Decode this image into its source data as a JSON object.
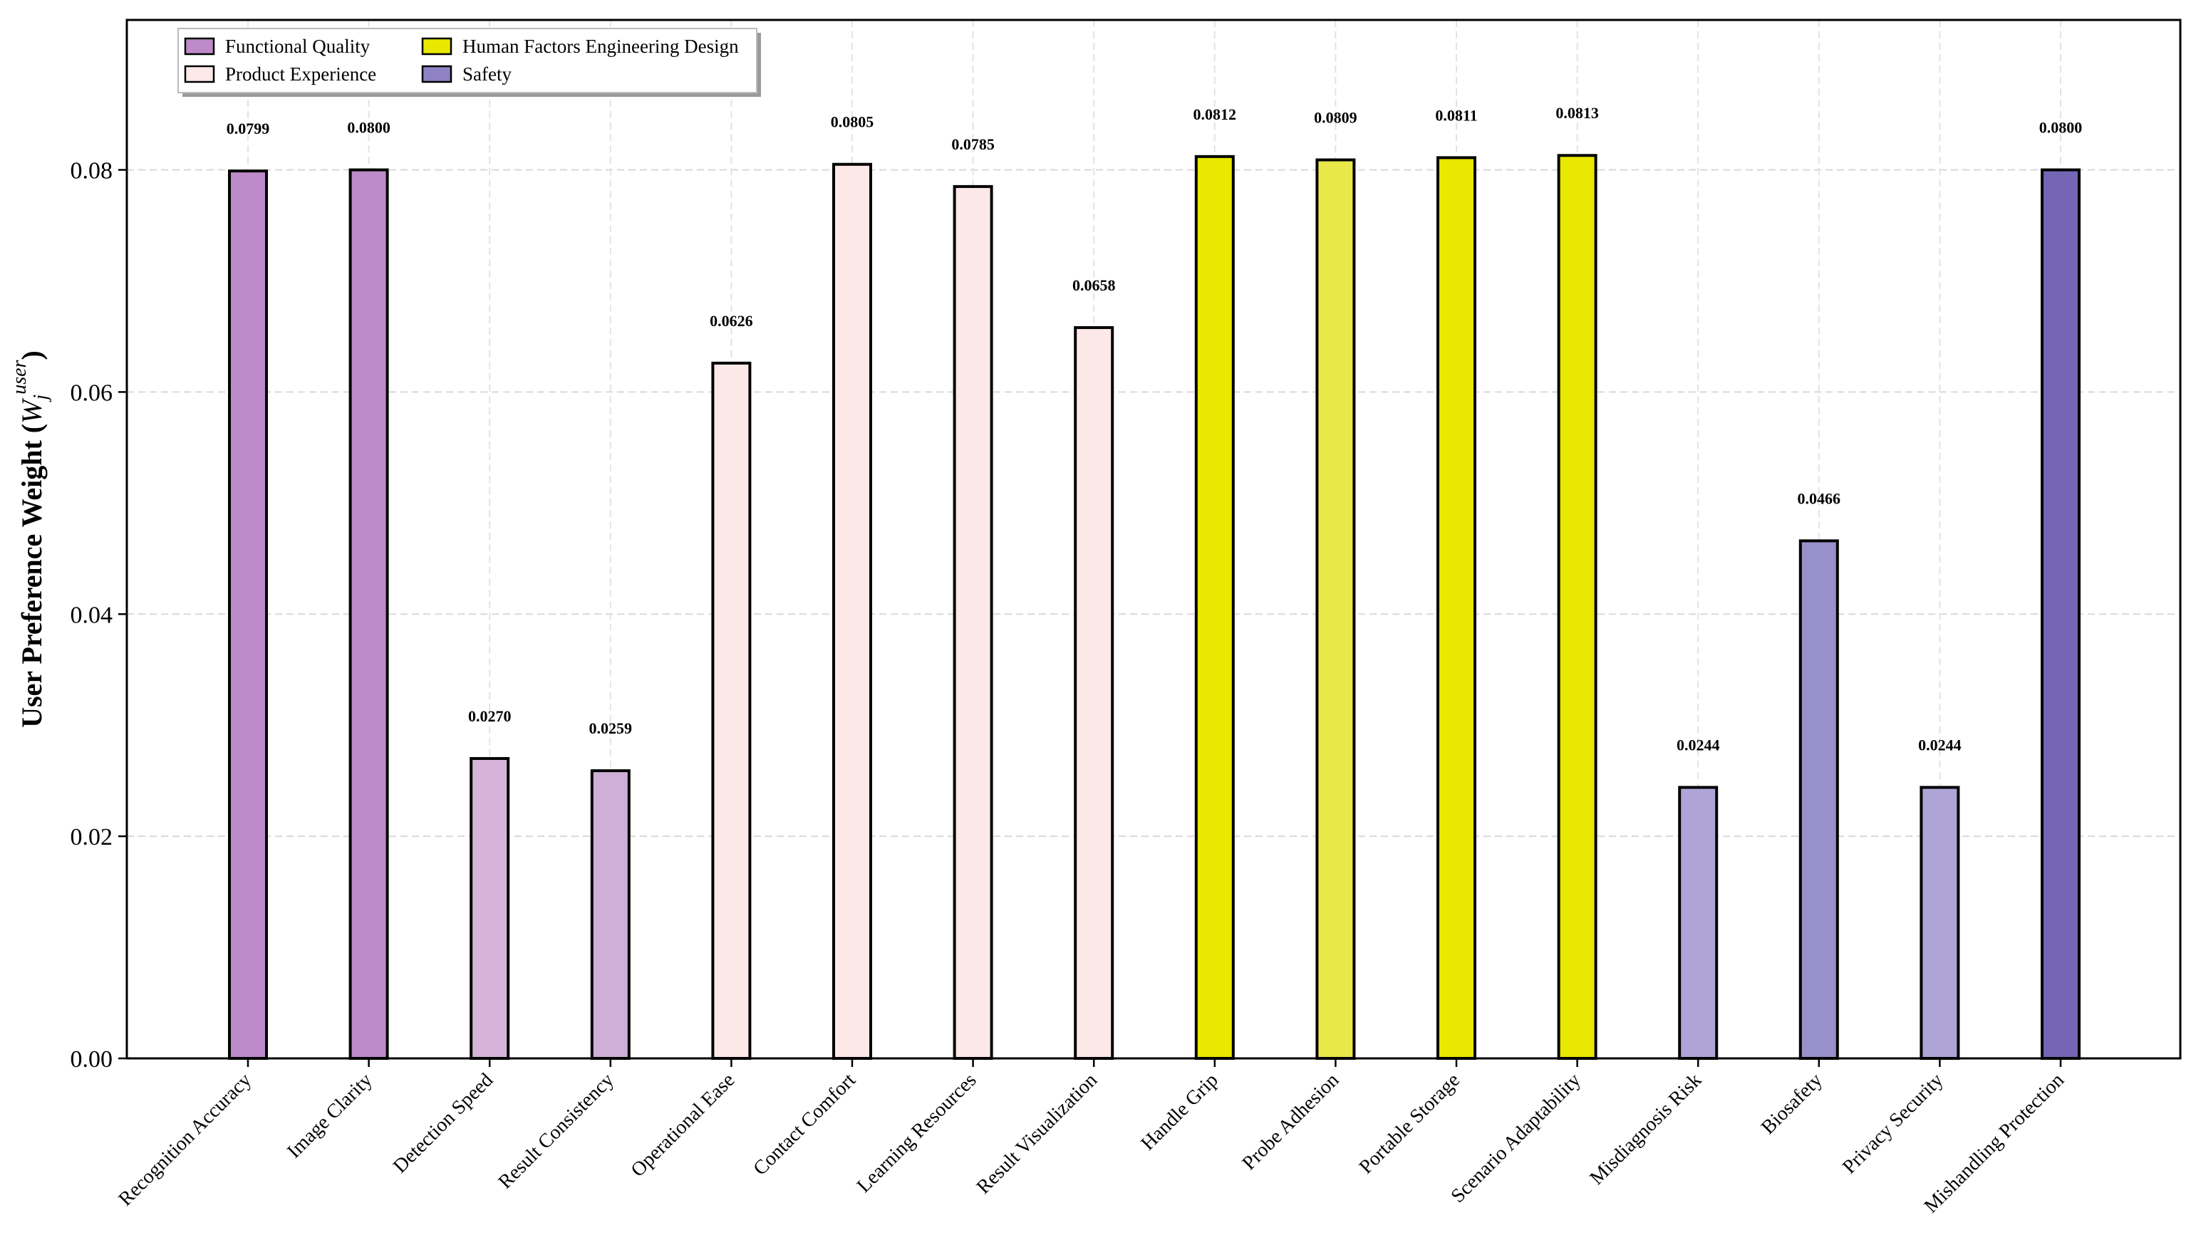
{
  "chart_data": {
    "type": "bar",
    "title": "",
    "xlabel": "",
    "ylabel": {
      "main": "User Preference Weight (",
      "var": "W",
      "sub": "j",
      "sup": "user",
      "close": ")"
    },
    "ylim": [
      0,
      0.0935
    ],
    "yticks": [
      {
        "value": 0.0,
        "label": "0.00"
      },
      {
        "value": 0.02,
        "label": "0.02"
      },
      {
        "value": 0.04,
        "label": "0.04"
      },
      {
        "value": 0.06,
        "label": "0.06"
      },
      {
        "value": 0.08,
        "label": "0.08"
      }
    ],
    "grid": true,
    "legend_position": "top-left",
    "legend": [
      {
        "name": "Functional Quality",
        "color": "#BD8BC9"
      },
      {
        "name": "Product Experience",
        "color": "#FDE8E8"
      },
      {
        "name": "Human Factors Engineering Design",
        "color": "#E8E800"
      },
      {
        "name": "Safety",
        "color": "#8E82C4"
      }
    ],
    "categories": [
      "Recognition Accuracy",
      "Image Clarity",
      "Detection Speed",
      "Result Consistency",
      "Operational Ease",
      "Contact Comfort",
      "Learning Resources",
      "Result Visualization",
      "Handle Grip",
      "Probe Adhesion",
      "Portable Storage",
      "Scenario Adaptability",
      "Misdiagnosis Risk",
      "Biosafety",
      "Privacy Security",
      "Mishandling Protection"
    ],
    "values": [
      0.0799,
      0.08,
      0.027,
      0.0259,
      0.0626,
      0.0805,
      0.0785,
      0.0658,
      0.0812,
      0.0809,
      0.0811,
      0.0813,
      0.0244,
      0.0466,
      0.0244,
      0.08
    ],
    "value_labels": [
      "0.0799",
      "0.0800",
      "0.0270",
      "0.0259",
      "0.0626",
      "0.0805",
      "0.0785",
      "0.0658",
      "0.0812",
      "0.0809",
      "0.0811",
      "0.0813",
      "0.0244",
      "0.0466",
      "0.0244",
      "0.0800"
    ],
    "groups": [
      "Functional Quality",
      "Functional Quality",
      "Functional Quality",
      "Functional Quality",
      "Product Experience",
      "Product Experience",
      "Product Experience",
      "Product Experience",
      "Human Factors Engineering Design",
      "Human Factors Engineering Design",
      "Human Factors Engineering Design",
      "Human Factors Engineering Design",
      "Safety",
      "Safety",
      "Safety",
      "Safety"
    ],
    "bar_colors": [
      "#BD8BC9",
      "#BD8BC9",
      "#D6B4DA",
      "#CFAFD7",
      "#FDE8E8",
      "#FDE8E8",
      "#FDE8E8",
      "#FDE8E8",
      "#E8E800",
      "#E8E84A",
      "#E8E800",
      "#E8E800",
      "#AEA5D6",
      "#9890C9",
      "#AEA5D6",
      "#7565B5"
    ]
  }
}
